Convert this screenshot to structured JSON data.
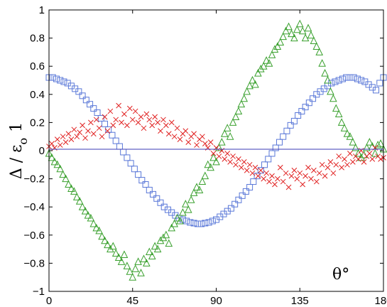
{
  "chart_data": {
    "type": "scatter",
    "title": "",
    "xlabel": "θ°",
    "ylabel_parts": {
      "main": "Δ / ε",
      "subscript": "o",
      "suffix": "1"
    },
    "xlim": [
      0,
      180
    ],
    "ylim": [
      -1,
      1
    ],
    "xticks": [
      0,
      45,
      90,
      135,
      180
    ],
    "yticks": [
      -1,
      -0.8,
      -0.6,
      -0.4,
      -0.2,
      0,
      0.2,
      0.4,
      0.6,
      0.8,
      1
    ],
    "xtick_labels": [
      "0",
      "45",
      "90",
      "135",
      "180"
    ],
    "ytick_labels": [
      "−1",
      "−0.8",
      "−0.6",
      "−0.4",
      "−0.2",
      "0",
      "0.2",
      "0.4",
      "0.6",
      "0.8",
      "1"
    ],
    "grid": false,
    "reference_line": {
      "y": 0.01,
      "color": "#3b3bb5"
    },
    "series": [
      {
        "marker": "square",
        "color": "#5a78d8",
        "x": [
          0,
          2,
          4,
          6,
          8,
          10,
          12,
          14,
          16,
          18,
          20,
          22,
          24,
          26,
          28,
          30,
          32,
          34,
          36,
          38,
          40,
          42,
          44,
          46,
          48,
          50,
          52,
          54,
          56,
          58,
          60,
          62,
          64,
          66,
          68,
          70,
          72,
          74,
          76,
          78,
          80,
          82,
          84,
          86,
          88,
          90,
          92,
          94,
          96,
          98,
          100,
          102,
          104,
          106,
          108,
          110,
          112,
          114,
          116,
          118,
          120,
          122,
          124,
          126,
          128,
          130,
          132,
          134,
          136,
          138,
          140,
          142,
          144,
          146,
          148,
          150,
          152,
          154,
          156,
          158,
          160,
          162,
          164,
          166,
          168,
          170,
          172,
          174,
          176,
          178,
          180
        ],
        "y": [
          0.52,
          0.52,
          0.51,
          0.5,
          0.49,
          0.48,
          0.46,
          0.44,
          0.42,
          0.39,
          0.36,
          0.33,
          0.3,
          0.27,
          0.23,
          0.19,
          0.15,
          0.11,
          0.07,
          0.03,
          -0.01,
          -0.05,
          -0.09,
          -0.13,
          -0.17,
          -0.21,
          -0.24,
          -0.28,
          -0.31,
          -0.34,
          -0.37,
          -0.4,
          -0.42,
          -0.44,
          -0.46,
          -0.48,
          -0.49,
          -0.5,
          -0.51,
          -0.515,
          -0.52,
          -0.52,
          -0.515,
          -0.51,
          -0.5,
          -0.49,
          -0.47,
          -0.45,
          -0.43,
          -0.41,
          -0.38,
          -0.35,
          -0.32,
          -0.29,
          -0.26,
          -0.22,
          -0.18,
          -0.14,
          -0.1,
          -0.06,
          -0.02,
          0.02,
          0.06,
          0.1,
          0.14,
          0.18,
          0.21,
          0.25,
          0.28,
          0.31,
          0.34,
          0.37,
          0.4,
          0.42,
          0.44,
          0.46,
          0.48,
          0.49,
          0.5,
          0.51,
          0.52,
          0.52,
          0.52,
          0.51,
          0.5,
          0.49,
          0.47,
          0.45,
          0.43,
          0.48,
          0.52
        ]
      },
      {
        "marker": "triangle",
        "color": "#3aa02e",
        "x": [
          0,
          1.5,
          3,
          4.5,
          6,
          7.5,
          9,
          10.5,
          12,
          13.5,
          15,
          16.5,
          18,
          19.5,
          21,
          22.5,
          24,
          25.5,
          27,
          28.5,
          30,
          31.5,
          33,
          34.5,
          36,
          37.5,
          39,
          40.5,
          42,
          43.5,
          45,
          46.5,
          48,
          49.5,
          51,
          52.5,
          54,
          55.5,
          57,
          58.5,
          60,
          61.5,
          63,
          64.5,
          66,
          67.5,
          69,
          70.5,
          72,
          73.5,
          75,
          76.5,
          78,
          79.5,
          81,
          82.5,
          84,
          85.5,
          87,
          88.5,
          90,
          91.5,
          93,
          94.5,
          96,
          97.5,
          99,
          100.5,
          102,
          103.5,
          105,
          106.5,
          108,
          109.5,
          111,
          112.5,
          114,
          115.5,
          117,
          118.5,
          120,
          121.5,
          123,
          124.5,
          126,
          127.5,
          129,
          130.5,
          132,
          133.5,
          135,
          136.5,
          138,
          139.5,
          141,
          142.5,
          144,
          145.5,
          147,
          148.5,
          150,
          151.5,
          153,
          154.5,
          156,
          157.5,
          159,
          160.5,
          162,
          163.5,
          165,
          166.5,
          168,
          169.5,
          171,
          172.5,
          174,
          175.5,
          177,
          178.5,
          180
        ],
        "y": [
          -0.02,
          -0.05,
          -0.08,
          -0.1,
          -0.13,
          -0.17,
          -0.2,
          -0.24,
          -0.27,
          -0.29,
          -0.33,
          -0.36,
          -0.4,
          -0.43,
          -0.46,
          -0.48,
          -0.52,
          -0.55,
          -0.57,
          -0.61,
          -0.64,
          -0.67,
          -0.7,
          -0.68,
          -0.73,
          -0.76,
          -0.79,
          -0.74,
          -0.82,
          -0.86,
          -0.9,
          -0.84,
          -0.79,
          -0.87,
          -0.77,
          -0.8,
          -0.72,
          -0.75,
          -0.68,
          -0.7,
          -0.64,
          -0.62,
          -0.6,
          -0.66,
          -0.55,
          -0.52,
          -0.48,
          -0.5,
          -0.44,
          -0.38,
          -0.42,
          -0.35,
          -0.3,
          -0.26,
          -0.28,
          -0.22,
          -0.18,
          -0.1,
          -0.12,
          -0.05,
          -0.08,
          0.02,
          0.06,
          0.12,
          0.16,
          0.1,
          0.2,
          0.24,
          0.28,
          0.33,
          0.37,
          0.42,
          0.46,
          0.5,
          0.47,
          0.55,
          0.58,
          0.6,
          0.64,
          0.62,
          0.68,
          0.72,
          0.74,
          0.77,
          0.81,
          0.85,
          0.88,
          0.83,
          0.8,
          0.86,
          0.9,
          0.85,
          0.8,
          0.87,
          0.82,
          0.78,
          0.74,
          0.7,
          0.62,
          0.55,
          0.5,
          0.42,
          0.37,
          0.3,
          0.26,
          0.2,
          0.16,
          0.12,
          0.1,
          0.06,
          0.02,
          -0.02,
          -0.05,
          -0.03,
          0.02,
          0.06,
          0.03,
          -0.02,
          0.04,
          0.05,
          0.01
        ],
        "note": ""
      },
      {
        "marker": "x",
        "color": "#e02020",
        "x": [
          0,
          1.5,
          3,
          4.5,
          6,
          7.5,
          9,
          10.5,
          12,
          13.5,
          15,
          16.5,
          18,
          19.5,
          21,
          22.5,
          24,
          25.5,
          27,
          28.5,
          30,
          31.5,
          33,
          34.5,
          36,
          37.5,
          39,
          40.5,
          42,
          43.5,
          45,
          46.5,
          48,
          49.5,
          51,
          52.5,
          54,
          55.5,
          57,
          58.5,
          60,
          61.5,
          63,
          64.5,
          66,
          67.5,
          69,
          70.5,
          72,
          73.5,
          75,
          76.5,
          78,
          79.5,
          81,
          82.5,
          84,
          85.5,
          87,
          88.5,
          90,
          91.5,
          93,
          94.5,
          96,
          97.5,
          99,
          100.5,
          102,
          103.5,
          105,
          106.5,
          108,
          109.5,
          111,
          112.5,
          114,
          115.5,
          117,
          118.5,
          120,
          121.5,
          123,
          124.5,
          126,
          127.5,
          129,
          130.5,
          132,
          133.5,
          135,
          136.5,
          138,
          139.5,
          141,
          142.5,
          144,
          145.5,
          147,
          148.5,
          150,
          151.5,
          153,
          154.5,
          156,
          157.5,
          159,
          160.5,
          162,
          163.5,
          165,
          166.5,
          168,
          169.5,
          171,
          172.5,
          174,
          175.5,
          177,
          178.5,
          180
        ],
        "y": [
          0.03,
          0.05,
          0.02,
          0.08,
          0.04,
          0.1,
          0.06,
          0.12,
          0.08,
          0.15,
          0.1,
          0.13,
          0.18,
          0.09,
          0.14,
          0.2,
          0.12,
          0.22,
          0.16,
          0.1,
          0.24,
          0.14,
          0.28,
          0.18,
          0.22,
          0.32,
          0.2,
          0.26,
          0.18,
          0.3,
          0.22,
          0.28,
          0.2,
          0.24,
          0.16,
          0.26,
          0.22,
          0.18,
          0.24,
          0.2,
          0.14,
          0.22,
          0.18,
          0.12,
          0.2,
          0.1,
          0.16,
          0.08,
          0.12,
          0.14,
          0.06,
          0.1,
          0.12,
          0.04,
          0.08,
          0.1,
          0.05,
          0.02,
          0.06,
          -0.02,
          0.02,
          -0.04,
          0.0,
          -0.06,
          -0.02,
          -0.08,
          -0.04,
          -0.1,
          -0.06,
          -0.12,
          -0.08,
          -0.14,
          -0.1,
          -0.16,
          -0.12,
          -0.18,
          -0.14,
          -0.2,
          -0.16,
          -0.22,
          -0.18,
          -0.24,
          -0.2,
          -0.12,
          -0.22,
          -0.16,
          -0.26,
          -0.18,
          -0.14,
          -0.2,
          -0.16,
          -0.24,
          -0.18,
          -0.12,
          -0.2,
          -0.14,
          -0.22,
          -0.16,
          -0.1,
          -0.18,
          -0.12,
          -0.08,
          -0.16,
          -0.1,
          -0.04,
          -0.12,
          -0.06,
          -0.1,
          -0.02,
          -0.08,
          -0.04,
          -0.06,
          0.0,
          -0.08,
          -0.04,
          -0.02,
          -0.06,
          0.02,
          -0.04,
          -0.06,
          -0.05
        ]
      }
    ]
  }
}
